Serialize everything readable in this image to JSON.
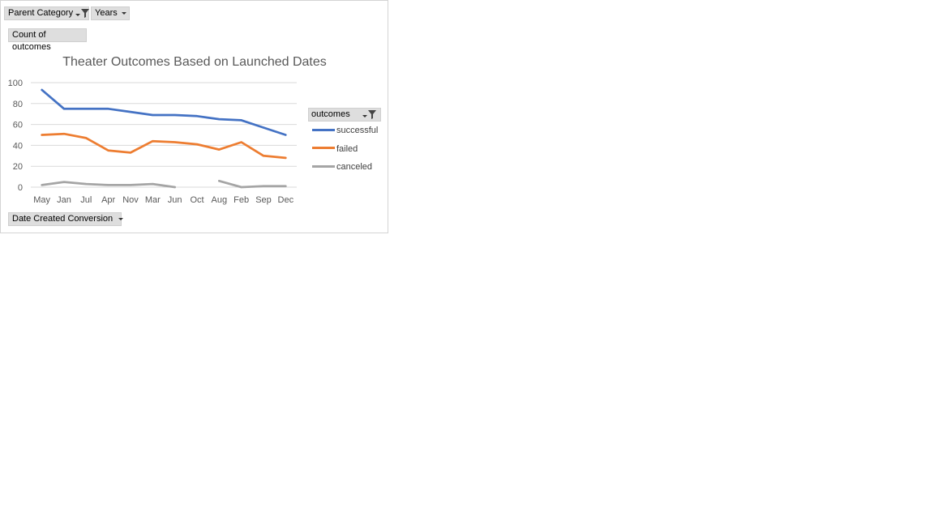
{
  "filters": {
    "parent_category": "Parent Category",
    "years": "Years"
  },
  "value_field": "Count of outcomes",
  "axis_field": "Date Created Conversion",
  "legend": {
    "header": "outcomes"
  },
  "colors": {
    "successful": "#4472C4",
    "failed": "#ED7D31",
    "canceled": "#A5A5A5",
    "grid": "#d9d9d9",
    "axis_text": "#595959"
  },
  "chart_data": {
    "type": "line",
    "title": "Theater Outcomes Based on Launched Dates",
    "xlabel": "",
    "ylabel": "",
    "categories": [
      "May",
      "Jan",
      "Jul",
      "Apr",
      "Nov",
      "Mar",
      "Jun",
      "Oct",
      "Aug",
      "Feb",
      "Sep",
      "Dec"
    ],
    "series": [
      {
        "name": "successful",
        "values": [
          93,
          75,
          75,
          75,
          72,
          69,
          69,
          68,
          65,
          64,
          57,
          50
        ]
      },
      {
        "name": "failed",
        "values": [
          50,
          51,
          47,
          35,
          33,
          44,
          43,
          41,
          36,
          43,
          30,
          28
        ]
      },
      {
        "name": "canceled",
        "values": [
          2,
          5,
          3,
          2,
          2,
          3,
          0,
          null,
          6,
          0,
          1,
          1
        ]
      }
    ],
    "ylim": [
      0,
      100
    ],
    "yticks": [
      0,
      20,
      40,
      60,
      80,
      100
    ],
    "grid": true,
    "legend_position": "right"
  }
}
